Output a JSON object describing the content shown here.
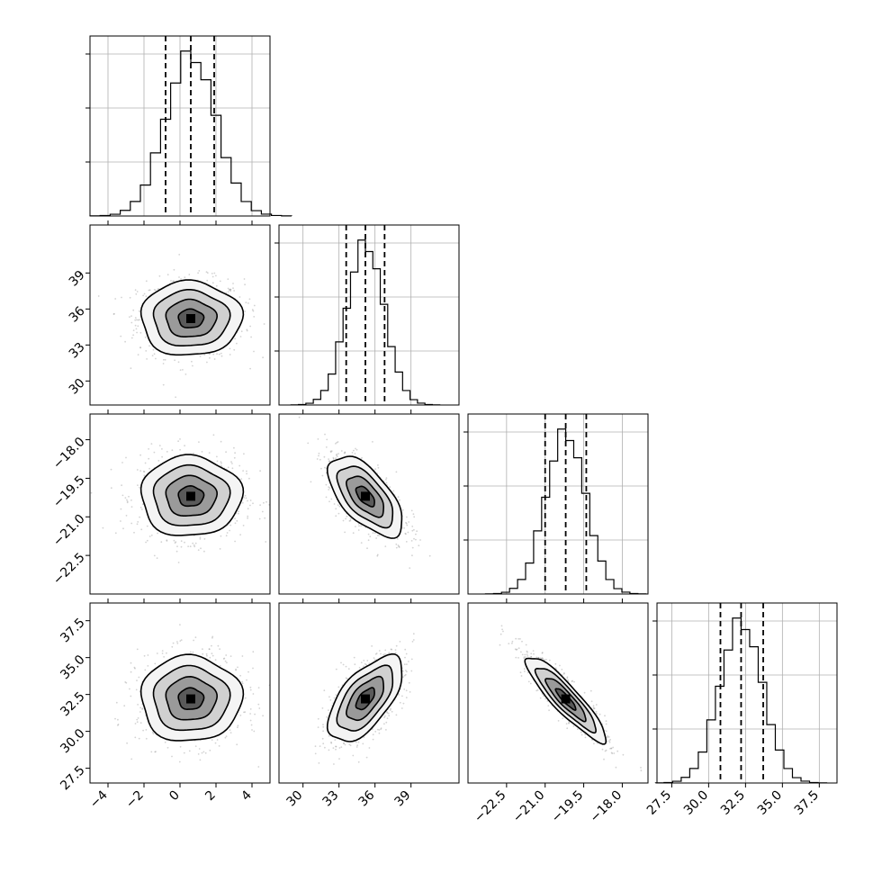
{
  "chart_data": {
    "type": "corner",
    "title": "",
    "grid": true,
    "parameters": [
      {
        "name": "",
        "range": [
          -5,
          5
        ],
        "ticks": [
          -4,
          -2,
          0,
          2,
          4
        ],
        "tick_labels": [
          "−4",
          "−2",
          "0",
          "2",
          "4"
        ],
        "mean": 0.6,
        "sd": 1.4,
        "quantiles": [
          -0.8,
          0.6,
          1.9
        ],
        "scatter_color": "#808080"
      },
      {
        "name": "",
        "range": [
          28.0,
          43.0
        ],
        "ticks": [
          30,
          33,
          36,
          39
        ],
        "tick_labels": [
          "30",
          "33",
          "36",
          "39"
        ],
        "mean": 35.2,
        "sd": 1.55,
        "quantiles": [
          33.6,
          35.2,
          36.8
        ],
        "scatter_color": "#808080"
      },
      {
        "name": "",
        "range": [
          -24,
          -17
        ],
        "ticks": [
          -22.5,
          -21.0,
          -19.5,
          -18.0
        ],
        "tick_labels": [
          "−22.5",
          "−21.0",
          "−19.5",
          "−18.0"
        ],
        "mean": -20.2,
        "sd": 0.78,
        "quantiles": [
          -21.0,
          -20.2,
          -19.4
        ],
        "scatter_color": "#808080"
      },
      {
        "name": "",
        "range": [
          26.5,
          38.7
        ],
        "ticks": [
          27.5,
          30.0,
          32.5,
          35.0,
          37.5
        ],
        "tick_labels": [
          "27.5",
          "30.0",
          "32.5",
          "35.0",
          "37.5"
        ],
        "mean": 32.2,
        "sd": 1.45,
        "quantiles": [
          30.8,
          32.2,
          33.7
        ],
        "scatter_color": "#808080"
      }
    ],
    "correlations": [
      {
        "row": 1,
        "col": 0,
        "rho": 0.0
      },
      {
        "row": 2,
        "col": 0,
        "rho": 0.0
      },
      {
        "row": 2,
        "col": 1,
        "rho": -0.62
      },
      {
        "row": 3,
        "col": 0,
        "rho": 0.0
      },
      {
        "row": 3,
        "col": 1,
        "rho": 0.62
      },
      {
        "row": 3,
        "col": 2,
        "rho": -0.9
      }
    ],
    "histogram_bins": 20,
    "contour_levels_sigma": [
      0.5,
      1.0,
      1.5,
      2.0
    ],
    "quantile_line_style": "dashed",
    "line_color": "#000000"
  }
}
